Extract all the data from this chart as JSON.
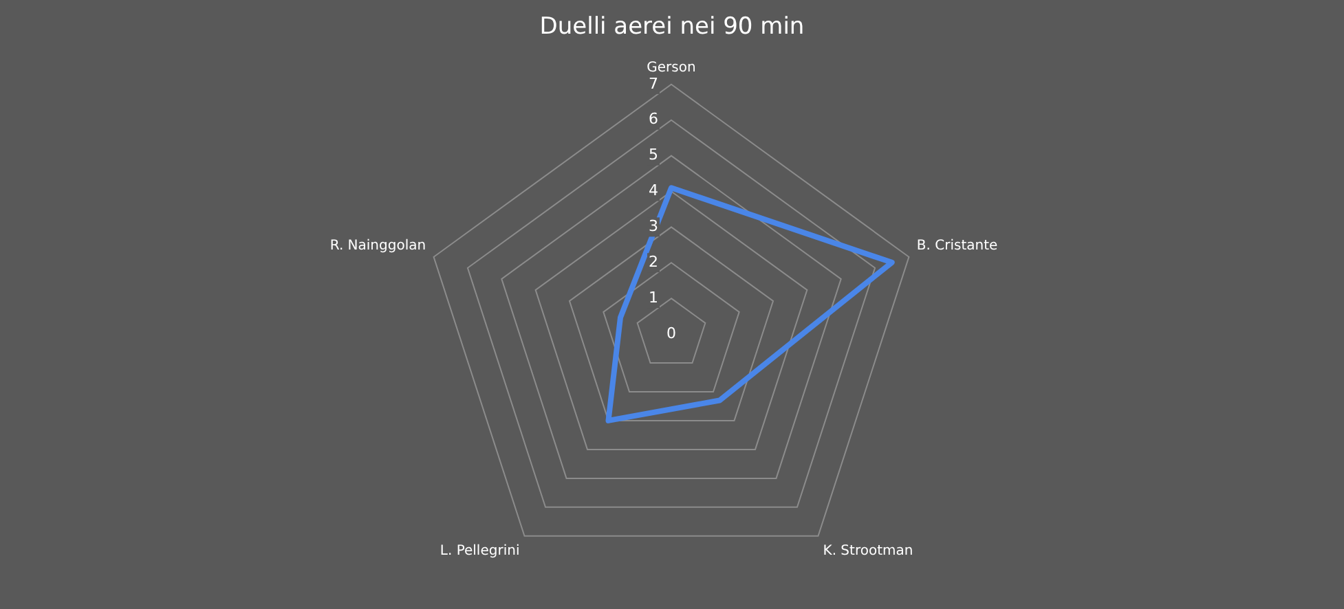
{
  "chart_data": {
    "type": "radar",
    "title": "Duelli aerei nei 90 min",
    "categories": [
      "Gerson",
      "B. Cristante",
      "K. Strootman",
      "L. Pellegrini",
      "R. Nainggolan"
    ],
    "series": [
      {
        "color": "#4a86e8",
        "values": [
          4.1,
          6.5,
          2.3,
          3.0,
          1.5
        ]
      }
    ],
    "ylim": [
      0,
      7
    ],
    "yticks": [
      0,
      1,
      2,
      3,
      4,
      5,
      6,
      7
    ],
    "grid": true,
    "legend": false,
    "marker": "none",
    "line_style": "solid"
  }
}
